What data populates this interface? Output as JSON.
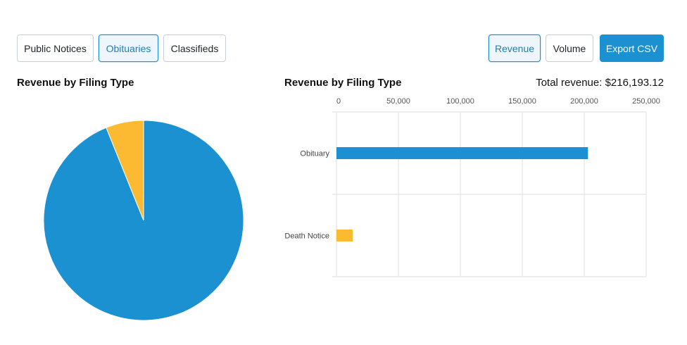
{
  "tabs": [
    {
      "label": "Public Notices",
      "active": false
    },
    {
      "label": "Obituaries",
      "active": true
    },
    {
      "label": "Classifieds",
      "active": false
    }
  ],
  "metrics": [
    {
      "label": "Revenue",
      "active": true
    },
    {
      "label": "Volume",
      "active": false
    }
  ],
  "export_label": "Export CSV",
  "total_revenue_label": "Total revenue: $216,193.12",
  "colors": {
    "obituary": "#1b91d1",
    "death_notice": "#fbba32",
    "accent": "#1b91d1"
  },
  "chart_data": [
    {
      "type": "pie",
      "title": "Revenue by Filing Type",
      "categories": [
        "Obituary",
        "Death Notice"
      ],
      "values": [
        203000,
        13193.12
      ]
    },
    {
      "type": "bar",
      "orientation": "horizontal",
      "title": "Revenue by Filing Type",
      "categories": [
        "Obituary",
        "Death Notice"
      ],
      "values": [
        203000,
        13193.12
      ],
      "xlim": [
        0,
        250000
      ],
      "xticks": [
        "0",
        "50,000",
        "100,000",
        "150,000",
        "200,000",
        "250,000"
      ],
      "grid": true
    }
  ]
}
